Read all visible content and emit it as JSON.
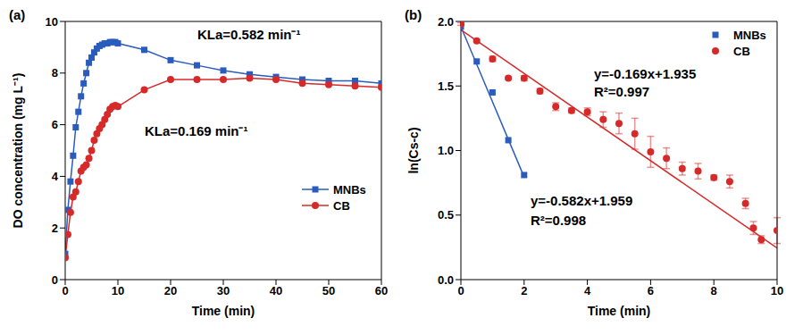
{
  "chart_data": [
    {
      "type": "line",
      "title": "(a)",
      "x_label": "Time (min)",
      "y_label": "DO concentration (mg L⁻¹)",
      "xlim": [
        0,
        60
      ],
      "xticks": [
        0,
        10,
        20,
        30,
        40,
        50,
        60
      ],
      "ylim": [
        0,
        10
      ],
      "yticks": [
        0,
        2,
        4,
        6,
        8,
        10
      ],
      "legend": "right",
      "annotations": [
        "KLa=0.582 min⁻¹",
        "KLa=0.169 min⁻¹"
      ],
      "series": [
        {
          "name": "MNBs",
          "color": "#2a5cbd",
          "marker": "square",
          "x": [
            0,
            0.5,
            1,
            1.5,
            2,
            2.5,
            3,
            3.5,
            4,
            4.5,
            5,
            5.5,
            6,
            6.5,
            7,
            7.5,
            8,
            8.5,
            9,
            9.5,
            10,
            15,
            20,
            25,
            30,
            35,
            40,
            45,
            50,
            55,
            60
          ],
          "values": [
            1.0,
            2.7,
            3.8,
            4.8,
            5.9,
            6.5,
            7.1,
            7.6,
            8.0,
            8.4,
            8.6,
            8.8,
            8.95,
            9.05,
            9.1,
            9.15,
            9.15,
            9.2,
            9.2,
            9.2,
            9.15,
            8.9,
            8.5,
            8.3,
            8.1,
            7.95,
            7.85,
            7.75,
            7.7,
            7.7,
            7.6
          ]
        },
        {
          "name": "CB",
          "color": "#d62a2a",
          "marker": "circle",
          "x": [
            0,
            0.5,
            1,
            1.5,
            2,
            2.5,
            3,
            3.5,
            4,
            4.5,
            5,
            5.5,
            6,
            6.5,
            7,
            7.5,
            8,
            8.5,
            9,
            9.5,
            10,
            15,
            20,
            25,
            30,
            35,
            40,
            45,
            50,
            55,
            60
          ],
          "values": [
            0.85,
            1.75,
            2.6,
            3.2,
            3.4,
            3.8,
            4.2,
            4.35,
            4.45,
            4.7,
            5.0,
            5.4,
            5.65,
            5.85,
            6.0,
            6.2,
            6.4,
            6.6,
            6.7,
            6.75,
            6.7,
            7.35,
            7.75,
            7.75,
            7.75,
            7.8,
            7.75,
            7.6,
            7.55,
            7.5,
            7.45
          ]
        }
      ]
    },
    {
      "type": "scatter",
      "title": "(b)",
      "x_label": "Time (min)",
      "y_label": "ln(Cs-c)",
      "xlim": [
        0,
        10
      ],
      "xticks": [
        0,
        2,
        4,
        6,
        8,
        10
      ],
      "ylim": [
        0,
        2
      ],
      "yticks": [
        {
          "value": 0,
          "label": "0.0"
        },
        {
          "value": 0.5,
          "label": "0.5"
        },
        {
          "value": 1,
          "label": "1.0"
        },
        {
          "value": 1.5,
          "label": "1.5"
        },
        {
          "value": 2,
          "label": "2.0"
        }
      ],
      "legend": "upper right",
      "annotations": [
        "y=-0.169x+1.935",
        "R²=0.997",
        "y=-0.582x+1.959",
        "R²=0.998"
      ],
      "series": [
        {
          "name": "MNBs",
          "color": "#2a5cbd",
          "marker": "square",
          "x": [
            0,
            0.5,
            1,
            1.5,
            2
          ],
          "values": [
            1.96,
            1.69,
            1.45,
            1.08,
            0.81
          ],
          "fit": {
            "x": [
              0,
              2
            ],
            "y": [
              1.959,
              0.795
            ]
          }
        },
        {
          "name": "CB",
          "color": "#d62a2a",
          "marker": "circle",
          "x": [
            0,
            0.5,
            1,
            1.5,
            2,
            2.5,
            3,
            3.5,
            4,
            4.5,
            5,
            5.5,
            6,
            6.5,
            7,
            7.5,
            8,
            8.5,
            9,
            9.25,
            9.5,
            10
          ],
          "values": [
            1.98,
            1.85,
            1.71,
            1.56,
            1.56,
            1.46,
            1.34,
            1.31,
            1.3,
            1.24,
            1.21,
            1.13,
            0.99,
            0.94,
            0.86,
            0.84,
            0.79,
            0.76,
            0.59,
            0.4,
            0.31,
            0.38
          ],
          "errors": [
            0.01,
            0.01,
            0.02,
            0.01,
            0.02,
            0.02,
            0.03,
            0.02,
            0.03,
            0.06,
            0.08,
            0.12,
            0.12,
            0.08,
            0.05,
            0.06,
            0.02,
            0.05,
            0.04,
            0.05,
            0.03,
            0.1
          ],
          "fit": {
            "x": [
              0,
              10
            ],
            "y": [
              1.935,
              0.245
            ]
          }
        }
      ]
    }
  ]
}
